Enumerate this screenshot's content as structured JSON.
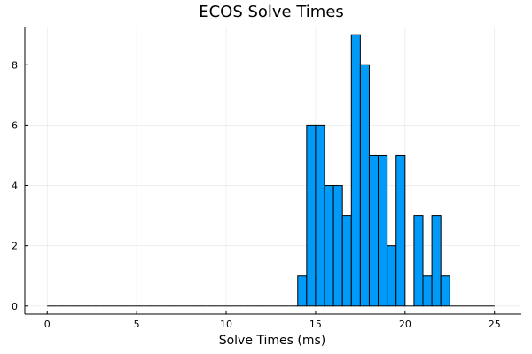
{
  "chart_data": {
    "type": "bar",
    "title": "ECOS Solve Times",
    "xlabel": "Solve Times (ms)",
    "ylabel": "",
    "xlim": [
      -1.25,
      26.5
    ],
    "ylim": [
      -0.27,
      9.27
    ],
    "xticks": [
      0,
      5,
      10,
      15,
      20,
      25
    ],
    "yticks": [
      0,
      2,
      4,
      6,
      8
    ],
    "bin_width": 0.5,
    "bin_starts": [
      0,
      0.5,
      1,
      1.5,
      2,
      2.5,
      3,
      3.5,
      4,
      4.5,
      5,
      5.5,
      6,
      6.5,
      7,
      7.5,
      8,
      8.5,
      9,
      9.5,
      10,
      10.5,
      11,
      11.5,
      12,
      12.5,
      13,
      13.5,
      14,
      14.5,
      15,
      15.5,
      16,
      16.5,
      17,
      17.5,
      18,
      18.5,
      19,
      19.5,
      20,
      20.5,
      21,
      21.5,
      22,
      22.5,
      23,
      23.5,
      24,
      24.5
    ],
    "values": [
      0,
      0,
      0,
      0,
      0,
      0,
      0,
      0,
      0,
      0,
      0,
      0,
      0,
      0,
      0,
      0,
      0,
      0,
      0,
      0,
      0,
      0,
      0,
      0,
      0,
      0,
      0,
      0,
      1,
      6,
      6,
      4,
      4,
      3,
      9,
      8,
      5,
      5,
      2,
      5,
      0,
      3,
      1,
      3,
      1,
      0,
      0,
      0,
      0,
      0
    ],
    "bar_color": "#009AF9",
    "grid": true,
    "legend": false
  }
}
